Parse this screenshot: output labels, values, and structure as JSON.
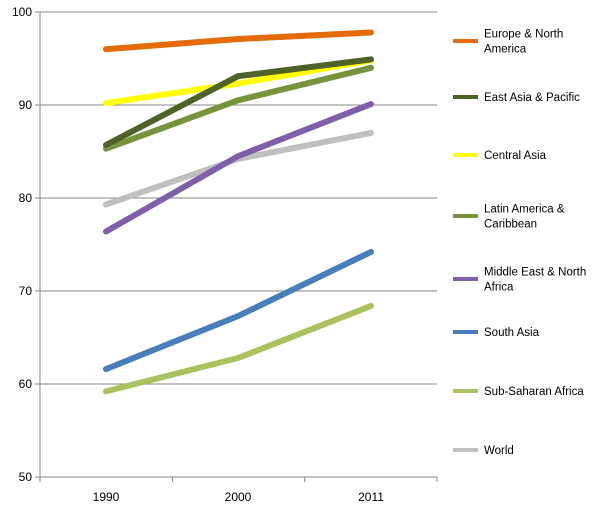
{
  "chart_data": {
    "type": "line",
    "title": "",
    "xlabel": "",
    "ylabel": "",
    "x": [
      "1990",
      "2000",
      "2011"
    ],
    "ylim": [
      50,
      100
    ],
    "yticks": [
      50,
      60,
      70,
      80,
      90,
      100
    ],
    "grid": "horizontal",
    "legend_position": "right",
    "series": [
      {
        "name": "Europe & North America",
        "label_lines": [
          "Europe & North",
          "America"
        ],
        "color": "#E36C09",
        "values": [
          96.0,
          97.1,
          97.8
        ]
      },
      {
        "name": "East Asia & Pacific",
        "label_lines": [
          "East Asia & Pacific"
        ],
        "color": "#4F6228",
        "values": [
          85.7,
          93.1,
          94.9
        ]
      },
      {
        "name": "Central Asia",
        "label_lines": [
          "Central Asia"
        ],
        "color": "#FFFF00",
        "values": [
          90.2,
          92.3,
          94.8
        ]
      },
      {
        "name": "Latin America & Caribbean",
        "label_lines": [
          "Latin America &",
          "Caribbean"
        ],
        "color": "#77933C",
        "values": [
          85.3,
          90.5,
          94.0
        ]
      },
      {
        "name": "Middle East & North Africa",
        "label_lines": [
          "Middle East & North",
          "Africa"
        ],
        "color": "#7F5FA8",
        "values": [
          76.4,
          84.5,
          90.1
        ]
      },
      {
        "name": "South Asia",
        "label_lines": [
          "South Asia"
        ],
        "color": "#4A7EBB",
        "values": [
          61.6,
          67.3,
          74.2
        ]
      },
      {
        "name": "Sub-Saharan Africa",
        "label_lines": [
          "Sub-Saharan Africa"
        ],
        "color": "#A9C25E",
        "values": [
          59.2,
          62.8,
          68.4
        ]
      },
      {
        "name": "World",
        "label_lines": [
          "World"
        ],
        "color": "#BFBFBF",
        "values": [
          79.3,
          84.2,
          87.0
        ]
      }
    ]
  }
}
